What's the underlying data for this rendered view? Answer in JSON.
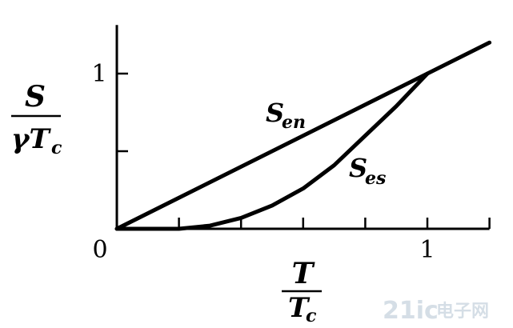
{
  "chart_data": {
    "type": "line",
    "xlabel": {
      "numerator": "T",
      "denominator": "T",
      "denominator_subscript": "c"
    },
    "ylabel": {
      "numerator": "S",
      "denominator": "γT",
      "denominator_subscript": "c"
    },
    "x_ticks": [
      0,
      0.2,
      0.4,
      0.6,
      0.8,
      1.0,
      1.2
    ],
    "y_ticks": [
      0,
      0.5,
      1.0
    ],
    "x_tick_labels": {
      "0": "0",
      "1": "1"
    },
    "y_tick_labels": {
      "1": "1"
    },
    "xlim": [
      0,
      1.2
    ],
    "ylim": [
      0,
      1.2
    ],
    "grid": false,
    "series": [
      {
        "name": "S",
        "subscript": "en",
        "x": [
          0,
          1.2
        ],
        "y": [
          0,
          1.2
        ]
      },
      {
        "name": "S",
        "subscript": "es",
        "x": [
          0,
          0.1,
          0.2,
          0.3,
          0.4,
          0.5,
          0.6,
          0.7,
          0.8,
          0.9,
          1.0
        ],
        "y": [
          0,
          0.0,
          0.0,
          0.02,
          0.07,
          0.15,
          0.26,
          0.41,
          0.6,
          0.79,
          1.0
        ]
      }
    ]
  },
  "watermark": {
    "text": "21ic",
    "cn_text": "电子网"
  }
}
